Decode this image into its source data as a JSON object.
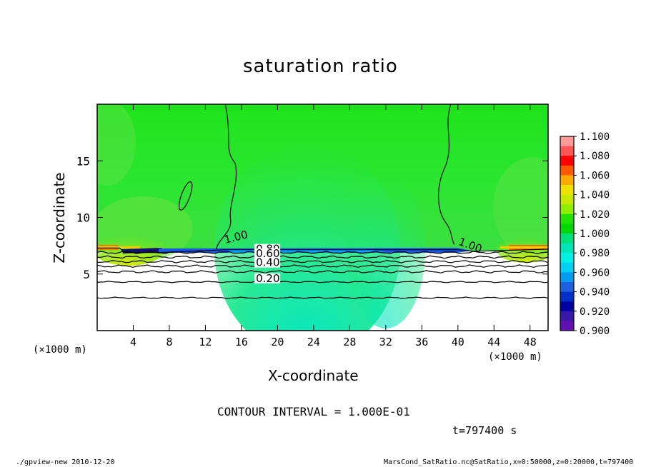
{
  "chart_data": {
    "type": "heatmap",
    "title": "saturation ratio",
    "xlabel": "X-coordinate",
    "ylabel": "Z-coordinate",
    "x_unit": "(×1000 m)",
    "y_unit": "(×1000 m)",
    "xlim": [
      0,
      50
    ],
    "ylim": [
      0,
      20
    ],
    "x_ticks": [
      4,
      8,
      12,
      16,
      20,
      24,
      28,
      32,
      36,
      40,
      44,
      48
    ],
    "y_ticks": [
      5,
      10,
      15
    ],
    "colorbar": {
      "levels": [
        1.1,
        1.08,
        1.06,
        1.04,
        1.02,
        1.0,
        0.98,
        0.96,
        0.94,
        0.92,
        0.9
      ],
      "labels": [
        "1.100",
        "1.080",
        "1.060",
        "1.040",
        "1.020",
        "1.000",
        "0.980",
        "0.960",
        "0.940",
        "0.920",
        "0.900"
      ],
      "colors_top_to_bottom": [
        "#ff9a9a",
        "#ff5555",
        "#ff0000",
        "#ff5a00",
        "#ffaa00",
        "#f0e000",
        "#c8e800",
        "#90ee00",
        "#22e200",
        "#00d800",
        "#00e07a",
        "#00e6b6",
        "#00f0e4",
        "#00d0f4",
        "#009cf0",
        "#2060e0",
        "#0030c8",
        "#0000a0",
        "#3818a8",
        "#6010b0"
      ]
    },
    "contour_labels": [
      {
        "text": "1.00",
        "x": 14.2,
        "z": 7.7
      },
      {
        "text": "1.00",
        "x": 40.0,
        "z": 7.6
      },
      {
        "text": "0.80",
        "x": 17.6,
        "z": 6.9
      },
      {
        "text": "0.60",
        "x": 17.6,
        "z": 6.5
      },
      {
        "text": "0.40",
        "x": 17.6,
        "z": 5.7
      },
      {
        "text": "0.20",
        "x": 17.6,
        "z": 4.3
      }
    ],
    "contour_interval": "CONTOUR INTERVAL = 1.000E-01",
    "time": "t=797400 s"
  },
  "footer": {
    "left": "./gpview-new   2010-12-20",
    "right": "MarsCond_SatRatio.nc@SatRatio,x=0:50000,z=0:20000,t=797400"
  }
}
